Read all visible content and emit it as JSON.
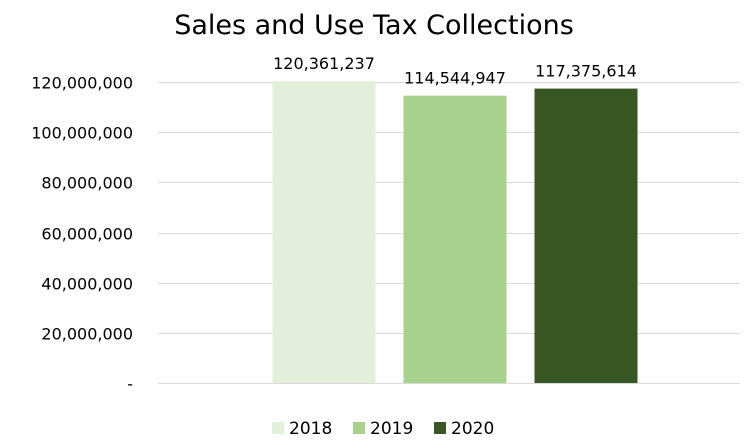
{
  "chart_data": {
    "type": "bar",
    "title": "Sales and Use Tax Collections",
    "xlabel": "",
    "ylabel": "",
    "categories": [
      "2018",
      "2019",
      "2020"
    ],
    "values": [
      120361237,
      114544947,
      117375614
    ],
    "value_labels": [
      "120,361,237",
      "114,544,947",
      "117,375,614"
    ],
    "colors": [
      "#e2efda",
      "#a9d18e",
      "#385723"
    ],
    "ylim": [
      0,
      120000000
    ],
    "yticks": [
      0,
      20000000,
      40000000,
      60000000,
      80000000,
      100000000,
      120000000
    ],
    "ytick_labels": [
      "-",
      "20,000,000",
      "40,000,000",
      "60,000,000",
      "80,000,000",
      "100,000,000",
      "120,000,000"
    ],
    "grid": true,
    "legend_position": "bottom",
    "legend": [
      {
        "label": "2018",
        "color": "#e2efda"
      },
      {
        "label": "2019",
        "color": "#a9d18e"
      },
      {
        "label": "2020",
        "color": "#385723"
      }
    ]
  }
}
